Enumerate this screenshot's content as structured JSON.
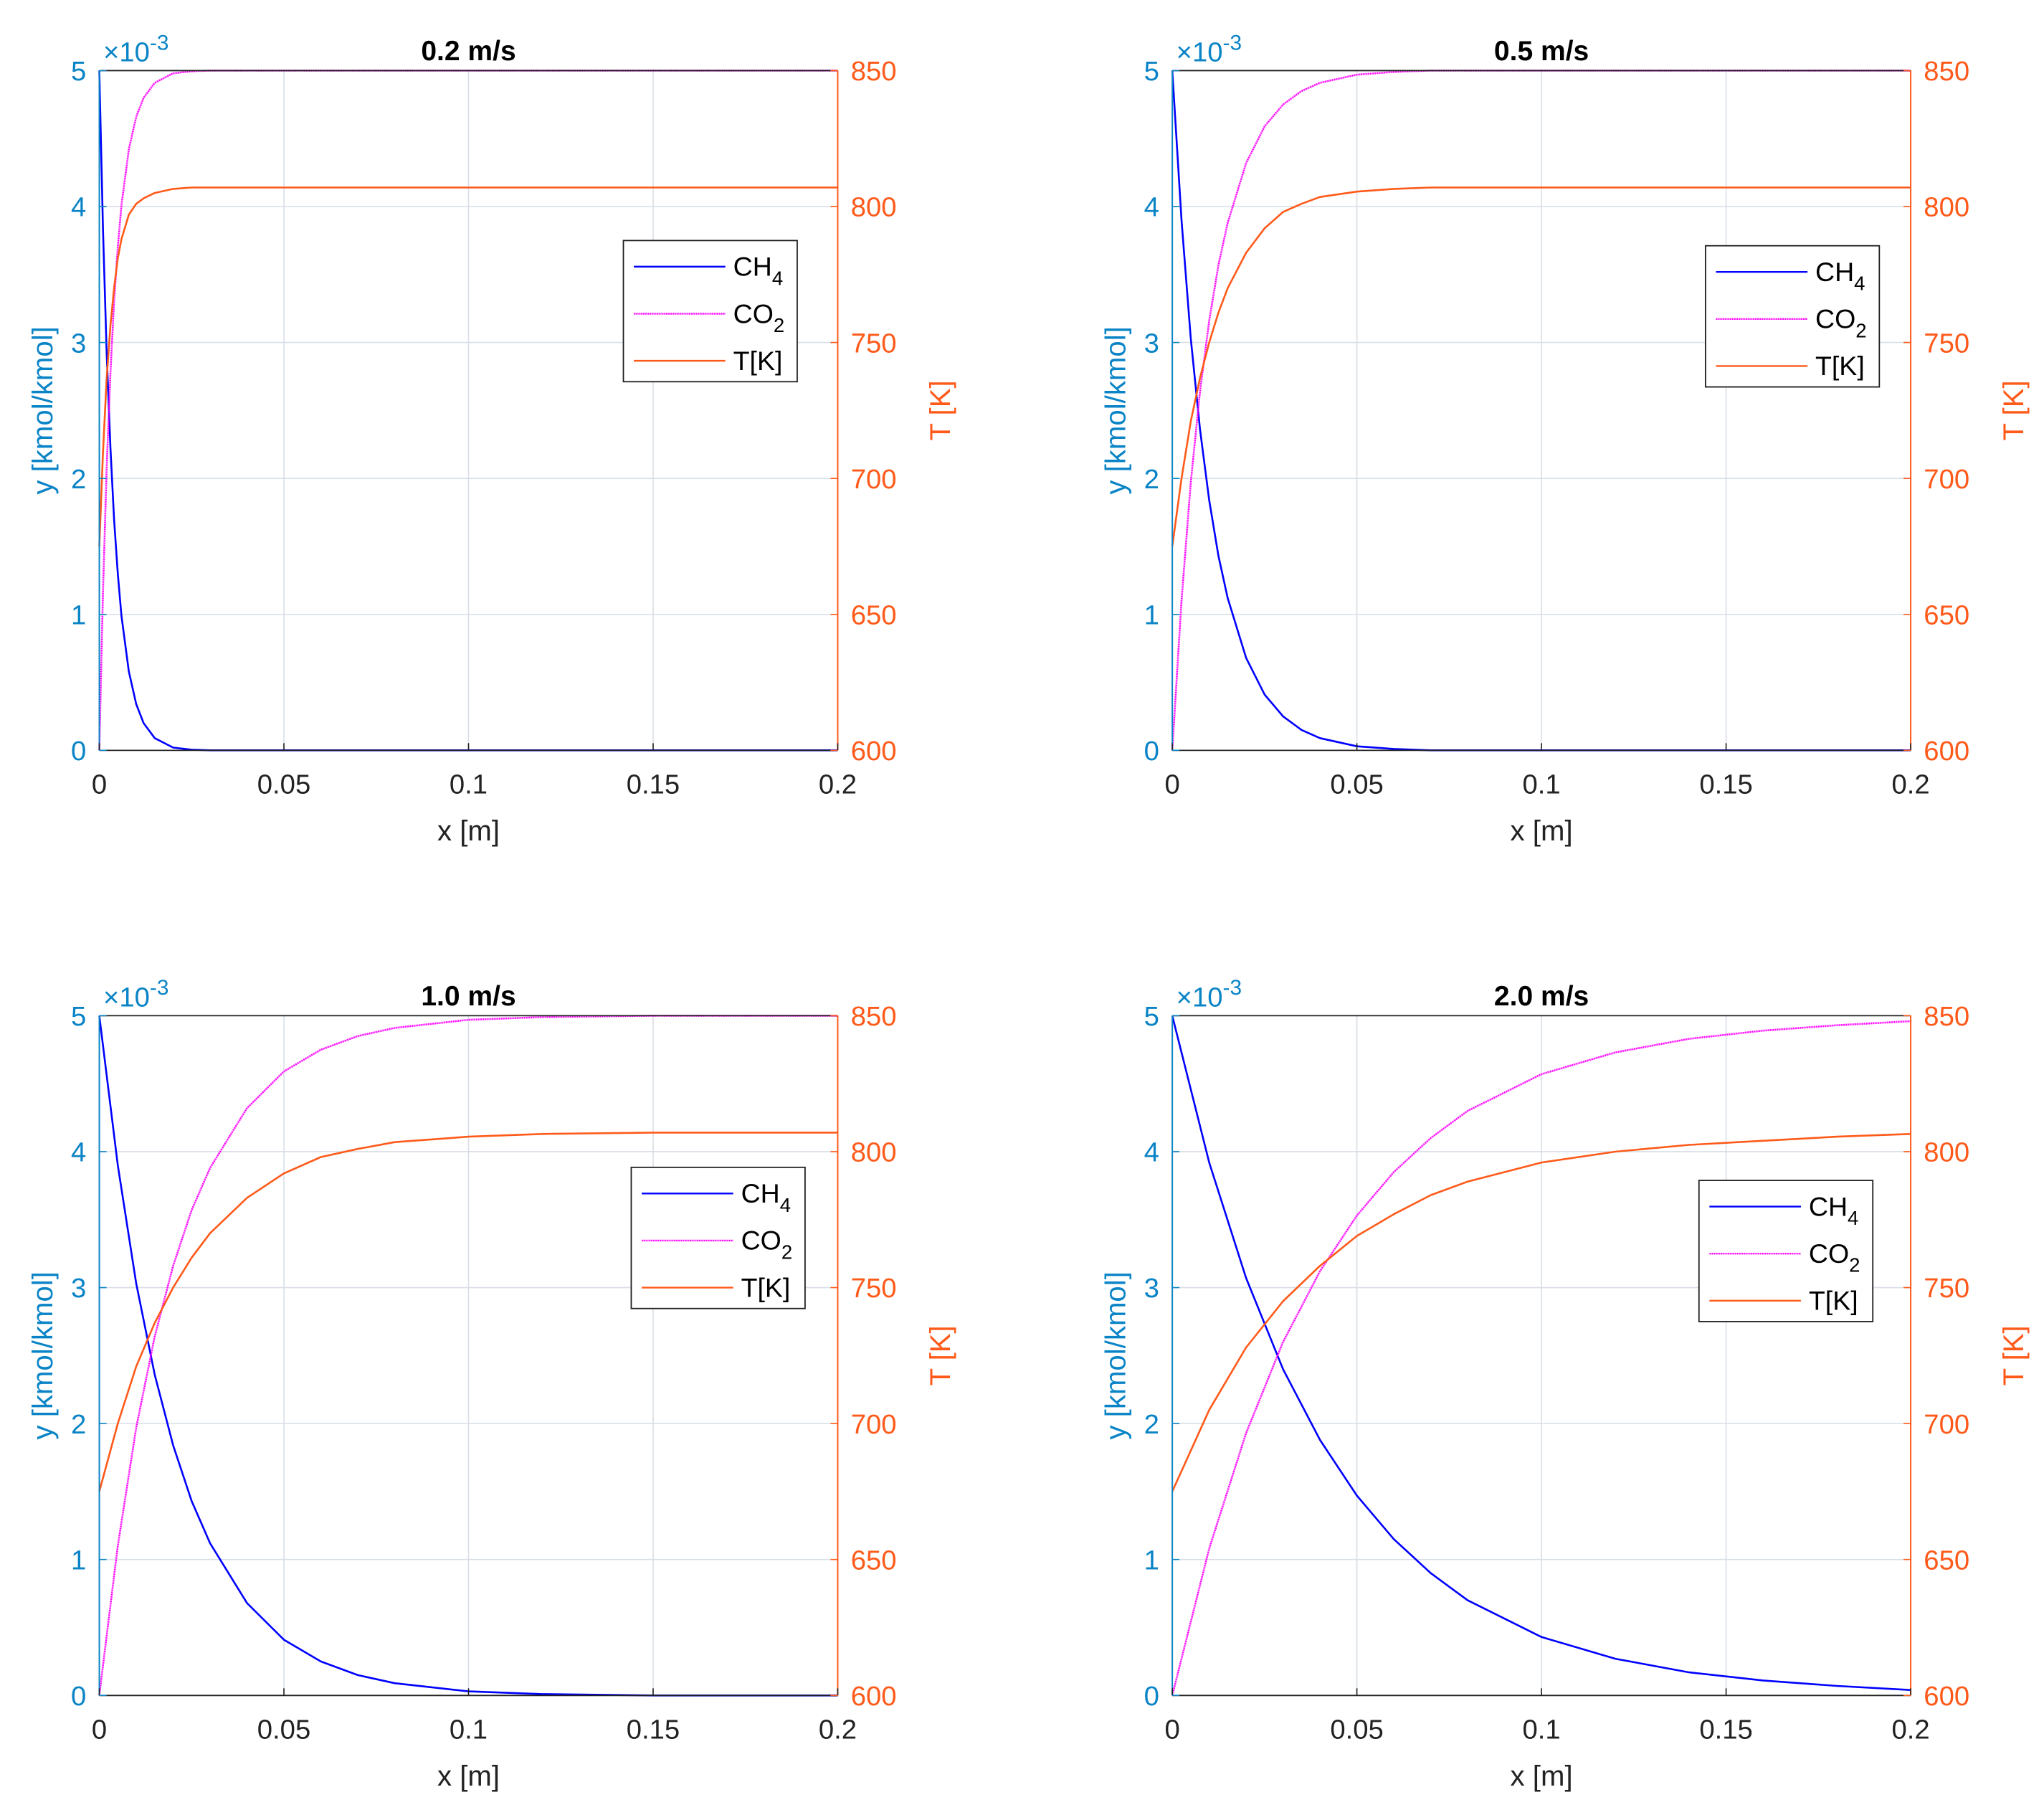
{
  "colors": {
    "ch4": "#0000ff",
    "co2": "#ff00ff",
    "temp": "#ff5a1a",
    "left_axis": "#0a84c6",
    "right_axis": "#ff5a1a",
    "grid": "#d8dee6",
    "frame": "#202020",
    "text": "#222222"
  },
  "chart_data": [
    {
      "type": "line",
      "title": "0.2 m/s",
      "xlabel": "x [m]",
      "ylabel": "y [kmol/kmol]",
      "y2label": "T [K]",
      "exponent_label": "×10",
      "exponent_power": "-3",
      "xlim": [
        0,
        0.2
      ],
      "ylim": [
        0,
        5
      ],
      "y2lim": [
        600,
        850
      ],
      "xticks": [
        0,
        0.05,
        0.1,
        0.15,
        0.2
      ],
      "xtick_labels": [
        "0",
        "0.05",
        "0.1",
        "0.15",
        "0.2"
      ],
      "yticks": [
        0,
        1,
        2,
        3,
        4,
        5
      ],
      "ytick_labels": [
        "0",
        "1",
        "2",
        "3",
        "4",
        "5"
      ],
      "y2ticks": [
        600,
        650,
        700,
        750,
        800,
        850
      ],
      "y2tick_labels": [
        "600",
        "650",
        "700",
        "750",
        "800",
        "850"
      ],
      "grid": true,
      "legend_position": "upper-right",
      "legend": [
        {
          "base": "CH",
          "sub": "4",
          "series": "CH4"
        },
        {
          "base": "CO",
          "sub": "2",
          "series": "CO2"
        },
        {
          "base": "T[K]",
          "sub": "",
          "series": "T"
        }
      ],
      "series": [
        {
          "name": "CH4",
          "axis": "left",
          "style": "solid",
          "x": [
            0,
            0.001,
            0.002,
            0.003,
            0.004,
            0.005,
            0.006,
            0.008,
            0.01,
            0.012,
            0.015,
            0.02,
            0.025,
            0.03,
            0.05,
            0.1,
            0.15,
            0.2
          ],
          "values": [
            5.0,
            3.82,
            2.92,
            2.23,
            1.7,
            1.3,
            0.99,
            0.58,
            0.34,
            0.2,
            0.09,
            0.02,
            0.005,
            0.0,
            0.0,
            0.0,
            0.0,
            0.0
          ]
        },
        {
          "name": "CO2",
          "axis": "left",
          "style": "dashdot",
          "x": [
            0,
            0.001,
            0.002,
            0.003,
            0.004,
            0.005,
            0.006,
            0.008,
            0.01,
            0.012,
            0.015,
            0.02,
            0.025,
            0.03,
            0.05,
            0.1,
            0.15,
            0.2
          ],
          "values": [
            0.0,
            1.18,
            2.08,
            2.77,
            3.3,
            3.7,
            4.01,
            4.42,
            4.66,
            4.8,
            4.91,
            4.98,
            4.995,
            5.0,
            5.0,
            5.0,
            5.0,
            5.0
          ]
        },
        {
          "name": "T",
          "axis": "right",
          "style": "solid",
          "x": [
            0,
            0.001,
            0.002,
            0.003,
            0.004,
            0.005,
            0.006,
            0.008,
            0.01,
            0.012,
            0.015,
            0.02,
            0.025,
            0.03,
            0.05,
            0.1,
            0.15,
            0.2
          ],
          "values": [
            675,
            710,
            737,
            756,
            770,
            781,
            788,
            797,
            801,
            803,
            805,
            806.5,
            807,
            807,
            807,
            807,
            807,
            807
          ]
        }
      ]
    },
    {
      "type": "line",
      "title": "0.5 m/s",
      "xlabel": "x [m]",
      "ylabel": "y [kmol/kmol]",
      "y2label": "T [K]",
      "exponent_label": "×10",
      "exponent_power": "-3",
      "xlim": [
        0,
        0.2
      ],
      "ylim": [
        0,
        5
      ],
      "y2lim": [
        600,
        850
      ],
      "xticks": [
        0,
        0.05,
        0.1,
        0.15,
        0.2
      ],
      "xtick_labels": [
        "0",
        "0.05",
        "0.1",
        "0.15",
        "0.2"
      ],
      "yticks": [
        0,
        1,
        2,
        3,
        4,
        5
      ],
      "ytick_labels": [
        "0",
        "1",
        "2",
        "3",
        "4",
        "5"
      ],
      "y2ticks": [
        600,
        650,
        700,
        750,
        800,
        850
      ],
      "y2tick_labels": [
        "600",
        "650",
        "700",
        "750",
        "800",
        "850"
      ],
      "grid": true,
      "legend_position": "upper-right",
      "legend": [
        {
          "base": "CH",
          "sub": "4",
          "series": "CH4"
        },
        {
          "base": "CO",
          "sub": "2",
          "series": "CO2"
        },
        {
          "base": "T[K]",
          "sub": "",
          "series": "T"
        }
      ],
      "series": [
        {
          "name": "CH4",
          "axis": "left",
          "style": "solid",
          "x": [
            0,
            0.0025,
            0.005,
            0.0075,
            0.01,
            0.0125,
            0.015,
            0.02,
            0.025,
            0.03,
            0.035,
            0.04,
            0.05,
            0.06,
            0.07,
            0.1,
            0.15,
            0.2
          ],
          "values": [
            5.0,
            3.9,
            3.03,
            2.36,
            1.84,
            1.43,
            1.12,
            0.68,
            0.41,
            0.25,
            0.15,
            0.09,
            0.03,
            0.01,
            0.0,
            0.0,
            0.0,
            0.0
          ]
        },
        {
          "name": "CO2",
          "axis": "left",
          "style": "dashdot",
          "x": [
            0,
            0.0025,
            0.005,
            0.0075,
            0.01,
            0.0125,
            0.015,
            0.02,
            0.025,
            0.03,
            0.035,
            0.04,
            0.05,
            0.06,
            0.07,
            0.1,
            0.15,
            0.2
          ],
          "values": [
            0.0,
            1.1,
            1.97,
            2.64,
            3.16,
            3.57,
            3.88,
            4.32,
            4.59,
            4.75,
            4.85,
            4.91,
            4.97,
            4.99,
            5.0,
            5.0,
            5.0,
            5.0
          ]
        },
        {
          "name": "T",
          "axis": "right",
          "style": "solid",
          "x": [
            0,
            0.0025,
            0.005,
            0.0075,
            0.01,
            0.0125,
            0.015,
            0.02,
            0.025,
            0.03,
            0.035,
            0.04,
            0.05,
            0.06,
            0.07,
            0.1,
            0.15,
            0.2
          ],
          "values": [
            675,
            700,
            721,
            737,
            750,
            761,
            770,
            783,
            792,
            798,
            801,
            803.5,
            805.5,
            806.5,
            807,
            807,
            807,
            807
          ]
        }
      ]
    },
    {
      "type": "line",
      "title": "1.0 m/s",
      "xlabel": "x [m]",
      "ylabel": "y [kmol/kmol]",
      "y2label": "T [K]",
      "exponent_label": "×10",
      "exponent_power": "-3",
      "xlim": [
        0,
        0.2
      ],
      "ylim": [
        0,
        5
      ],
      "y2lim": [
        600,
        850
      ],
      "xticks": [
        0,
        0.05,
        0.1,
        0.15,
        0.2
      ],
      "xtick_labels": [
        "0",
        "0.05",
        "0.1",
        "0.15",
        "0.2"
      ],
      "yticks": [
        0,
        1,
        2,
        3,
        4,
        5
      ],
      "ytick_labels": [
        "0",
        "1",
        "2",
        "3",
        "4",
        "5"
      ],
      "y2ticks": [
        600,
        650,
        700,
        750,
        800,
        850
      ],
      "y2tick_labels": [
        "600",
        "650",
        "700",
        "750",
        "800",
        "850"
      ],
      "grid": true,
      "legend_position": "upper-right",
      "legend": [
        {
          "base": "CH",
          "sub": "4",
          "series": "CH4"
        },
        {
          "base": "CO",
          "sub": "2",
          "series": "CO2"
        },
        {
          "base": "T[K]",
          "sub": "",
          "series": "T"
        }
      ],
      "series": [
        {
          "name": "CH4",
          "axis": "left",
          "style": "solid",
          "x": [
            0,
            0.005,
            0.01,
            0.015,
            0.02,
            0.025,
            0.03,
            0.04,
            0.05,
            0.06,
            0.07,
            0.08,
            0.1,
            0.12,
            0.15,
            0.2
          ],
          "values": [
            5.0,
            3.9,
            3.03,
            2.36,
            1.84,
            1.43,
            1.12,
            0.68,
            0.41,
            0.25,
            0.15,
            0.09,
            0.03,
            0.01,
            0.0,
            0.0
          ]
        },
        {
          "name": "CO2",
          "axis": "left",
          "style": "dashdot",
          "x": [
            0,
            0.005,
            0.01,
            0.015,
            0.02,
            0.025,
            0.03,
            0.04,
            0.05,
            0.06,
            0.07,
            0.08,
            0.1,
            0.12,
            0.15,
            0.2
          ],
          "values": [
            0.0,
            1.1,
            1.97,
            2.64,
            3.16,
            3.57,
            3.88,
            4.32,
            4.59,
            4.75,
            4.85,
            4.91,
            4.97,
            4.99,
            5.0,
            5.0
          ]
        },
        {
          "name": "T",
          "axis": "right",
          "style": "solid",
          "x": [
            0,
            0.005,
            0.01,
            0.015,
            0.02,
            0.025,
            0.03,
            0.04,
            0.05,
            0.06,
            0.07,
            0.08,
            0.1,
            0.12,
            0.15,
            0.2
          ],
          "values": [
            675,
            700,
            721,
            737,
            750,
            761,
            770,
            783,
            792,
            798,
            801,
            803.5,
            805.5,
            806.5,
            807,
            807
          ]
        }
      ]
    },
    {
      "type": "line",
      "title": "2.0 m/s",
      "xlabel": "x [m]",
      "ylabel": "y [kmol/kmol]",
      "y2label": "T [K]",
      "exponent_label": "×10",
      "exponent_power": "-3",
      "xlim": [
        0,
        0.2
      ],
      "ylim": [
        0,
        5
      ],
      "y2lim": [
        600,
        850
      ],
      "xticks": [
        0,
        0.05,
        0.1,
        0.15,
        0.2
      ],
      "xtick_labels": [
        "0",
        "0.05",
        "0.1",
        "0.15",
        "0.2"
      ],
      "yticks": [
        0,
        1,
        2,
        3,
        4,
        5
      ],
      "ytick_labels": [
        "0",
        "1",
        "2",
        "3",
        "4",
        "5"
      ],
      "y2ticks": [
        600,
        650,
        700,
        750,
        800,
        850
      ],
      "y2tick_labels": [
        "600",
        "650",
        "700",
        "750",
        "800",
        "850"
      ],
      "grid": true,
      "legend_position": "upper-right",
      "legend": [
        {
          "base": "CH",
          "sub": "4",
          "series": "CH4"
        },
        {
          "base": "CO",
          "sub": "2",
          "series": "CO2"
        },
        {
          "base": "T[K]",
          "sub": "",
          "series": "T"
        }
      ],
      "series": [
        {
          "name": "CH4",
          "axis": "left",
          "style": "solid",
          "x": [
            0,
            0.01,
            0.02,
            0.03,
            0.04,
            0.05,
            0.06,
            0.07,
            0.08,
            0.1,
            0.12,
            0.14,
            0.16,
            0.18,
            0.2
          ],
          "values": [
            5.0,
            3.92,
            3.07,
            2.4,
            1.88,
            1.47,
            1.15,
            0.9,
            0.7,
            0.43,
            0.27,
            0.17,
            0.11,
            0.07,
            0.04
          ]
        },
        {
          "name": "CO2",
          "axis": "left",
          "style": "dashdot",
          "x": [
            0,
            0.01,
            0.02,
            0.03,
            0.04,
            0.05,
            0.06,
            0.07,
            0.08,
            0.1,
            0.12,
            0.14,
            0.16,
            0.18,
            0.2
          ],
          "values": [
            0.0,
            1.08,
            1.93,
            2.6,
            3.12,
            3.53,
            3.85,
            4.1,
            4.3,
            4.57,
            4.73,
            4.83,
            4.89,
            4.93,
            4.96
          ]
        },
        {
          "name": "T",
          "axis": "right",
          "style": "solid",
          "x": [
            0,
            0.01,
            0.02,
            0.03,
            0.04,
            0.05,
            0.06,
            0.07,
            0.08,
            0.1,
            0.12,
            0.14,
            0.16,
            0.18,
            0.2
          ],
          "values": [
            675,
            705,
            728,
            745,
            758,
            769,
            777,
            784,
            789,
            796,
            800,
            802.5,
            804,
            805.5,
            806.5
          ]
        }
      ]
    }
  ]
}
